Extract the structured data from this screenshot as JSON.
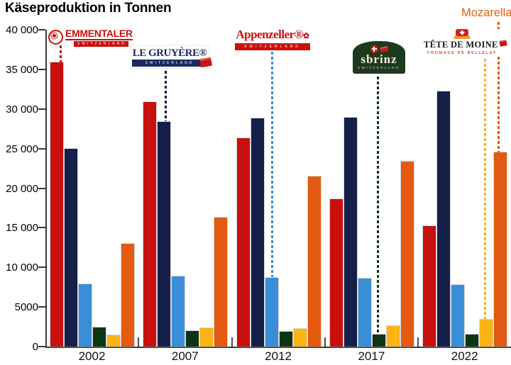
{
  "title": "Käseproduktion in Tonnen",
  "y_axis": {
    "tick_labels": [
      "40 000",
      "35 000",
      "30 000",
      "25 000",
      "20 000",
      "15 000",
      "10 000",
      "5000",
      "0"
    ],
    "tick_step": 5000
  },
  "x_axis": {
    "labels": [
      "2002",
      "2007",
      "2012",
      "2017",
      "2022"
    ]
  },
  "legend": {
    "emmentaler": {
      "name": "EMMENTALER",
      "sub": "SWITZERLAND"
    },
    "gruyere": {
      "name": "LE GRUYÈRE®",
      "sub": "SWITZERLAND"
    },
    "appenzeller": {
      "name": "Appenzeller®",
      "flower": "✿",
      "sub": "SWITZERLAND"
    },
    "sbrinz": {
      "name": "sbrinz",
      "sub": "SWITZERLAND"
    },
    "tete_de_moine": {
      "name": "TÊTE DE MOINE",
      "sub": "FROMAGE DE BELLELAY"
    },
    "mozarella": {
      "name": "Mozarella"
    }
  },
  "chart_data": {
    "type": "bar",
    "title": "Käseproduktion in Tonnen",
    "categories": [
      "2002",
      "2007",
      "2012",
      "2017",
      "2022"
    ],
    "series": [
      {
        "name": "Emmentaler",
        "color": "#c8100e",
        "values": [
          35900,
          30900,
          26300,
          18600,
          15200
        ]
      },
      {
        "name": "Le Gruyère",
        "color": "#141f4a",
        "values": [
          25000,
          28400,
          28800,
          28900,
          32200
        ]
      },
      {
        "name": "Appenzeller",
        "color": "#3a8ed8",
        "values": [
          7900,
          8900,
          8700,
          8600,
          7800
        ]
      },
      {
        "name": "Sbrinz",
        "color": "#0e3513",
        "values": [
          2400,
          2000,
          1900,
          1500,
          1500
        ]
      },
      {
        "name": "Tête de Moine",
        "color": "#fbb414",
        "values": [
          1400,
          2300,
          2200,
          2600,
          3400
        ]
      },
      {
        "name": "Mozarella",
        "color": "#e35a10",
        "values": [
          13000,
          16300,
          21500,
          23400,
          24500
        ]
      }
    ],
    "ylim": [
      0,
      40000
    ],
    "ylabel": "Tonnen",
    "grid": false,
    "legend_position": "top, brand logos with dotted leader lines to bars"
  }
}
